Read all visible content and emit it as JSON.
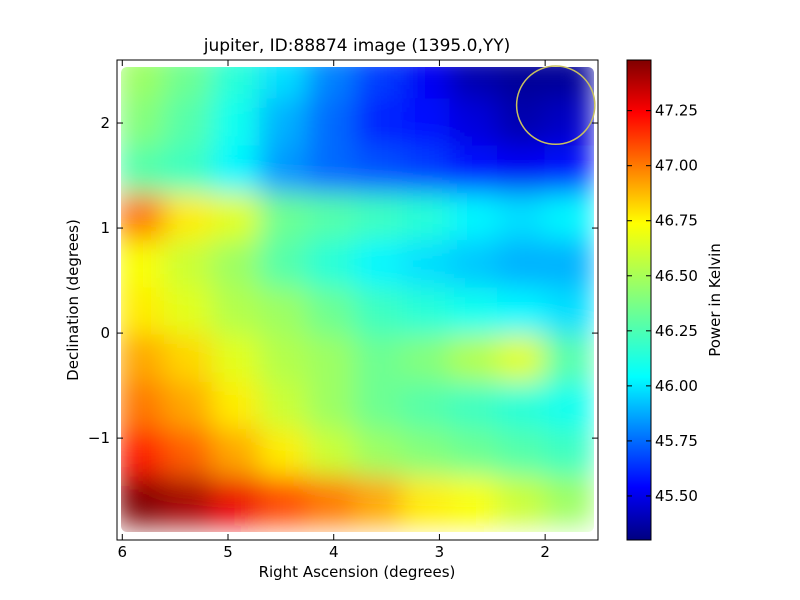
{
  "chart_data": {
    "type": "heatmap",
    "title": "jupiter, ID:88874 image (1395.0,YY)",
    "xlabel": "Right Ascension (degrees)",
    "ylabel": "Declination (degrees)",
    "xlim": [
      6.05,
      1.5
    ],
    "ylim": [
      -1.97,
      2.6
    ],
    "x_ticks": [
      6,
      5,
      4,
      3,
      2
    ],
    "y_ticks": [
      2,
      1,
      0,
      -1
    ],
    "y_tick_labels": [
      "2",
      "1",
      "0",
      "−1"
    ],
    "colorbar": {
      "label": "Power in Kelvin",
      "range": [
        45.3,
        47.48
      ],
      "ticks": [
        45.5,
        45.75,
        46.0,
        46.25,
        46.5,
        46.75,
        47.0,
        47.25
      ],
      "tick_labels": [
        "45.50",
        "45.75",
        "46.00",
        "46.25",
        "46.50",
        "46.75",
        "47.00",
        "47.25"
      ],
      "colormap": "jet"
    },
    "annotation": {
      "shape": "circle",
      "center_ra": 1.9,
      "center_dec": 2.17,
      "radius_deg": 0.37,
      "color": "#c8c060"
    },
    "grid": false,
    "rows": [
      {
        "dec": 2.45,
        "values": [
          46.45,
          46.35,
          46.2,
          46.05,
          45.85,
          45.7,
          45.55,
          45.4,
          45.35,
          45.35
        ]
      },
      {
        "dec": 2.0,
        "values": [
          46.4,
          46.3,
          46.15,
          45.95,
          45.8,
          45.65,
          45.6,
          45.5,
          45.4,
          45.45
        ]
      },
      {
        "dec": 1.55,
        "values": [
          46.3,
          46.25,
          46.1,
          45.9,
          45.8,
          45.75,
          45.7,
          45.6,
          45.55,
          45.6
        ]
      },
      {
        "dec": 1.1,
        "values": [
          46.95,
          46.7,
          46.6,
          46.35,
          46.3,
          46.25,
          46.2,
          46.1,
          46.05,
          46.1
        ]
      },
      {
        "dec": 0.65,
        "values": [
          46.65,
          46.55,
          46.45,
          46.3,
          46.2,
          46.1,
          46.05,
          46.0,
          45.95,
          45.95
        ]
      },
      {
        "dec": 0.2,
        "values": [
          46.7,
          46.6,
          46.5,
          46.45,
          46.35,
          46.25,
          46.2,
          46.15,
          46.1,
          46.05
        ]
      },
      {
        "dec": -0.25,
        "values": [
          46.85,
          46.75,
          46.6,
          46.5,
          46.45,
          46.35,
          46.4,
          46.5,
          46.6,
          46.3
        ]
      },
      {
        "dec": -0.7,
        "values": [
          46.95,
          46.85,
          46.7,
          46.55,
          46.45,
          46.35,
          46.3,
          46.25,
          46.2,
          46.15
        ]
      },
      {
        "dec": -1.15,
        "values": [
          47.15,
          47.0,
          46.85,
          46.7,
          46.55,
          46.45,
          46.4,
          46.35,
          46.3,
          46.25
        ]
      },
      {
        "dec": -1.6,
        "values": [
          47.48,
          47.4,
          47.25,
          47.05,
          46.95,
          46.85,
          46.7,
          46.65,
          46.55,
          46.45
        ]
      }
    ],
    "columns_ra": [
      5.82,
      5.37,
      4.92,
      4.47,
      4.02,
      3.57,
      3.12,
      2.67,
      2.22,
      1.77
    ]
  }
}
